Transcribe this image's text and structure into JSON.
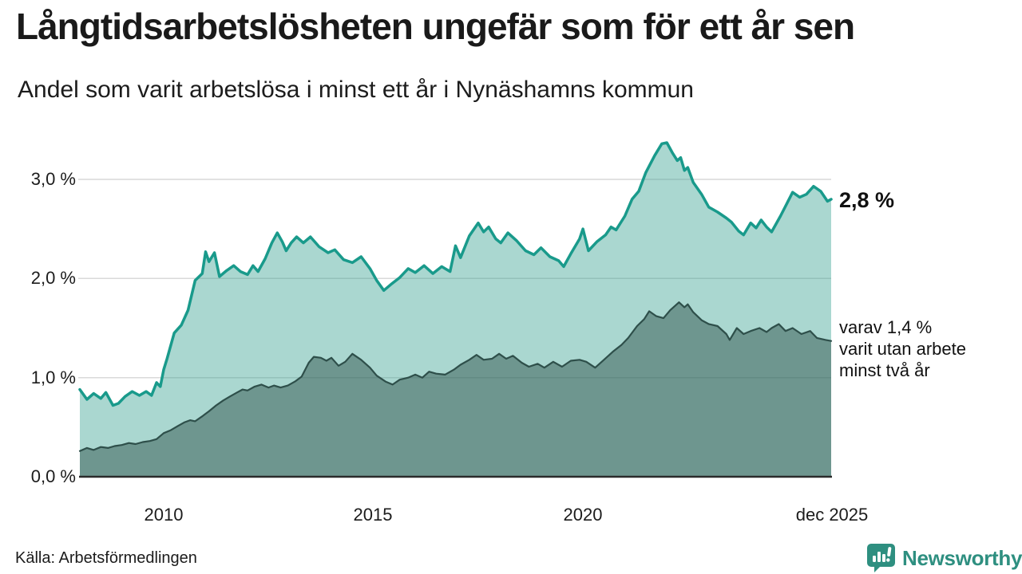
{
  "annotations": {
    "total_label": "2,8 %",
    "subset_lines": [
      "varav 1,4 %",
      "varit utan arbete",
      "minst två år"
    ]
  },
  "source_label": "Källa: Arbetsförmedlingen",
  "logo_text": "Newsworthy",
  "colors": {
    "accent_line": "#199a8b",
    "accent_fill": "rgba(53,160,142,0.42)",
    "dark_line": "#2e4f4a",
    "dark_fill": "rgba(46,79,74,0.48)",
    "gridline": "#d9d9d9",
    "axis_line": "#2b2b2b",
    "logo_teal": "#2e8f80"
  },
  "chart_data": {
    "type": "area",
    "title": "Långtidsarbetslösheten ungefär som för ett år sen",
    "subtitle": "Andel som varit arbetslösa i minst ett år i Nynäshamns kommun",
    "legend": "none (direct labels at line ends)",
    "x_axis": {
      "range": [
        2008,
        2025.92
      ],
      "ticks": [
        {
          "value": 2010,
          "label": "2010"
        },
        {
          "value": 2015,
          "label": "2015"
        },
        {
          "value": 2020,
          "label": "2020"
        },
        {
          "value": 2025.92,
          "label": "dec 2025"
        }
      ]
    },
    "y_axis": {
      "range": [
        0,
        3.5
      ],
      "unit": "%",
      "grid": true,
      "ticks": [
        {
          "value": 0,
          "label": "0,0 %"
        },
        {
          "value": 1,
          "label": "1,0 %"
        },
        {
          "value": 2,
          "label": "2,0 %"
        },
        {
          "value": 3,
          "label": "3,0 %"
        }
      ]
    },
    "series": [
      {
        "name": "Andel arbetslösa minst ett år",
        "end_value": 2.8,
        "end_label": "2,8 %",
        "color": "#199a8b",
        "fill": "rgba(53,160,142,0.42)",
        "points": [
          [
            2008.0,
            0.88
          ],
          [
            2008.17,
            0.78
          ],
          [
            2008.33,
            0.84
          ],
          [
            2008.5,
            0.79
          ],
          [
            2008.62,
            0.85
          ],
          [
            2008.79,
            0.72
          ],
          [
            2008.92,
            0.74
          ],
          [
            2009.08,
            0.81
          ],
          [
            2009.25,
            0.86
          ],
          [
            2009.42,
            0.82
          ],
          [
            2009.58,
            0.86
          ],
          [
            2009.71,
            0.82
          ],
          [
            2009.83,
            0.95
          ],
          [
            2009.92,
            0.91
          ],
          [
            2010.0,
            1.08
          ],
          [
            2010.08,
            1.19
          ],
          [
            2010.25,
            1.45
          ],
          [
            2010.42,
            1.53
          ],
          [
            2010.58,
            1.68
          ],
          [
            2010.75,
            1.98
          ],
          [
            2010.92,
            2.05
          ],
          [
            2011.0,
            2.27
          ],
          [
            2011.08,
            2.17
          ],
          [
            2011.21,
            2.26
          ],
          [
            2011.33,
            2.02
          ],
          [
            2011.5,
            2.08
          ],
          [
            2011.67,
            2.13
          ],
          [
            2011.83,
            2.07
          ],
          [
            2012.0,
            2.04
          ],
          [
            2012.13,
            2.13
          ],
          [
            2012.25,
            2.07
          ],
          [
            2012.42,
            2.2
          ],
          [
            2012.58,
            2.36
          ],
          [
            2012.71,
            2.46
          ],
          [
            2012.83,
            2.37
          ],
          [
            2012.92,
            2.28
          ],
          [
            2013.04,
            2.36
          ],
          [
            2013.17,
            2.42
          ],
          [
            2013.33,
            2.36
          ],
          [
            2013.5,
            2.42
          ],
          [
            2013.71,
            2.32
          ],
          [
            2013.92,
            2.26
          ],
          [
            2014.08,
            2.29
          ],
          [
            2014.29,
            2.19
          ],
          [
            2014.5,
            2.16
          ],
          [
            2014.71,
            2.22
          ],
          [
            2014.92,
            2.1
          ],
          [
            2015.08,
            1.98
          ],
          [
            2015.25,
            1.88
          ],
          [
            2015.42,
            1.94
          ],
          [
            2015.63,
            2.01
          ],
          [
            2015.83,
            2.1
          ],
          [
            2016.0,
            2.06
          ],
          [
            2016.21,
            2.13
          ],
          [
            2016.42,
            2.05
          ],
          [
            2016.63,
            2.12
          ],
          [
            2016.83,
            2.07
          ],
          [
            2016.96,
            2.33
          ],
          [
            2017.08,
            2.21
          ],
          [
            2017.29,
            2.43
          ],
          [
            2017.5,
            2.56
          ],
          [
            2017.63,
            2.47
          ],
          [
            2017.75,
            2.52
          ],
          [
            2017.92,
            2.4
          ],
          [
            2018.04,
            2.36
          ],
          [
            2018.21,
            2.46
          ],
          [
            2018.42,
            2.38
          ],
          [
            2018.63,
            2.28
          ],
          [
            2018.83,
            2.24
          ],
          [
            2019.0,
            2.31
          ],
          [
            2019.21,
            2.22
          ],
          [
            2019.42,
            2.18
          ],
          [
            2019.54,
            2.12
          ],
          [
            2019.71,
            2.25
          ],
          [
            2019.92,
            2.4
          ],
          [
            2020.0,
            2.5
          ],
          [
            2020.13,
            2.28
          ],
          [
            2020.33,
            2.37
          ],
          [
            2020.54,
            2.44
          ],
          [
            2020.67,
            2.52
          ],
          [
            2020.79,
            2.49
          ],
          [
            2021.0,
            2.63
          ],
          [
            2021.17,
            2.8
          ],
          [
            2021.33,
            2.88
          ],
          [
            2021.5,
            3.07
          ],
          [
            2021.71,
            3.24
          ],
          [
            2021.88,
            3.36
          ],
          [
            2022.0,
            3.37
          ],
          [
            2022.13,
            3.27
          ],
          [
            2022.25,
            3.19
          ],
          [
            2022.33,
            3.22
          ],
          [
            2022.42,
            3.09
          ],
          [
            2022.5,
            3.12
          ],
          [
            2022.63,
            2.97
          ],
          [
            2022.83,
            2.85
          ],
          [
            2023.0,
            2.72
          ],
          [
            2023.21,
            2.67
          ],
          [
            2023.42,
            2.61
          ],
          [
            2023.54,
            2.57
          ],
          [
            2023.71,
            2.48
          ],
          [
            2023.83,
            2.44
          ],
          [
            2024.0,
            2.56
          ],
          [
            2024.13,
            2.51
          ],
          [
            2024.25,
            2.59
          ],
          [
            2024.38,
            2.52
          ],
          [
            2024.5,
            2.47
          ],
          [
            2024.71,
            2.63
          ],
          [
            2024.88,
            2.77
          ],
          [
            2025.0,
            2.87
          ],
          [
            2025.17,
            2.82
          ],
          [
            2025.33,
            2.85
          ],
          [
            2025.5,
            2.93
          ],
          [
            2025.67,
            2.88
          ],
          [
            2025.83,
            2.78
          ],
          [
            2025.92,
            2.8
          ]
        ]
      },
      {
        "name": "Andel arbetslösa minst två år",
        "end_value": 1.4,
        "end_label": "varav 1,4 % varit utan arbete minst två år",
        "color": "#2e4f4a",
        "fill": "rgba(46,79,74,0.48)",
        "points": [
          [
            2008.0,
            0.26
          ],
          [
            2008.17,
            0.29
          ],
          [
            2008.33,
            0.27
          ],
          [
            2008.5,
            0.3
          ],
          [
            2008.67,
            0.29
          ],
          [
            2008.83,
            0.31
          ],
          [
            2009.0,
            0.32
          ],
          [
            2009.17,
            0.34
          ],
          [
            2009.33,
            0.33
          ],
          [
            2009.5,
            0.35
          ],
          [
            2009.67,
            0.36
          ],
          [
            2009.83,
            0.38
          ],
          [
            2010.0,
            0.44
          ],
          [
            2010.17,
            0.47
          ],
          [
            2010.33,
            0.51
          ],
          [
            2010.5,
            0.55
          ],
          [
            2010.63,
            0.57
          ],
          [
            2010.75,
            0.56
          ],
          [
            2010.92,
            0.61
          ],
          [
            2011.08,
            0.66
          ],
          [
            2011.25,
            0.72
          ],
          [
            2011.42,
            0.77
          ],
          [
            2011.58,
            0.81
          ],
          [
            2011.75,
            0.85
          ],
          [
            2011.88,
            0.88
          ],
          [
            2012.0,
            0.87
          ],
          [
            2012.17,
            0.91
          ],
          [
            2012.33,
            0.93
          ],
          [
            2012.5,
            0.9
          ],
          [
            2012.63,
            0.92
          ],
          [
            2012.79,
            0.9
          ],
          [
            2012.96,
            0.92
          ],
          [
            2013.13,
            0.96
          ],
          [
            2013.29,
            1.01
          ],
          [
            2013.46,
            1.15
          ],
          [
            2013.58,
            1.21
          ],
          [
            2013.75,
            1.2
          ],
          [
            2013.88,
            1.17
          ],
          [
            2014.0,
            1.2
          ],
          [
            2014.17,
            1.12
          ],
          [
            2014.33,
            1.16
          ],
          [
            2014.5,
            1.24
          ],
          [
            2014.71,
            1.18
          ],
          [
            2014.92,
            1.1
          ],
          [
            2015.08,
            1.02
          ],
          [
            2015.29,
            0.96
          ],
          [
            2015.46,
            0.93
          ],
          [
            2015.63,
            0.98
          ],
          [
            2015.83,
            1.0
          ],
          [
            2016.0,
            1.03
          ],
          [
            2016.17,
            1.0
          ],
          [
            2016.33,
            1.06
          ],
          [
            2016.5,
            1.04
          ],
          [
            2016.71,
            1.03
          ],
          [
            2016.92,
            1.08
          ],
          [
            2017.08,
            1.13
          ],
          [
            2017.29,
            1.18
          ],
          [
            2017.46,
            1.23
          ],
          [
            2017.63,
            1.18
          ],
          [
            2017.83,
            1.19
          ],
          [
            2018.0,
            1.24
          ],
          [
            2018.17,
            1.19
          ],
          [
            2018.33,
            1.22
          ],
          [
            2018.54,
            1.15
          ],
          [
            2018.71,
            1.11
          ],
          [
            2018.92,
            1.14
          ],
          [
            2019.08,
            1.1
          ],
          [
            2019.29,
            1.16
          ],
          [
            2019.5,
            1.11
          ],
          [
            2019.71,
            1.17
          ],
          [
            2019.92,
            1.18
          ],
          [
            2020.08,
            1.16
          ],
          [
            2020.29,
            1.1
          ],
          [
            2020.5,
            1.18
          ],
          [
            2020.71,
            1.26
          ],
          [
            2020.92,
            1.33
          ],
          [
            2021.08,
            1.4
          ],
          [
            2021.29,
            1.52
          ],
          [
            2021.46,
            1.59
          ],
          [
            2021.58,
            1.67
          ],
          [
            2021.75,
            1.62
          ],
          [
            2021.92,
            1.6
          ],
          [
            2022.08,
            1.68
          ],
          [
            2022.29,
            1.76
          ],
          [
            2022.42,
            1.71
          ],
          [
            2022.5,
            1.74
          ],
          [
            2022.63,
            1.66
          ],
          [
            2022.83,
            1.58
          ],
          [
            2023.0,
            1.54
          ],
          [
            2023.21,
            1.52
          ],
          [
            2023.42,
            1.44
          ],
          [
            2023.5,
            1.38
          ],
          [
            2023.67,
            1.5
          ],
          [
            2023.83,
            1.44
          ],
          [
            2024.0,
            1.47
          ],
          [
            2024.21,
            1.5
          ],
          [
            2024.38,
            1.46
          ],
          [
            2024.5,
            1.5
          ],
          [
            2024.67,
            1.54
          ],
          [
            2024.83,
            1.47
          ],
          [
            2025.0,
            1.5
          ],
          [
            2025.21,
            1.44
          ],
          [
            2025.42,
            1.47
          ],
          [
            2025.58,
            1.4
          ],
          [
            2025.79,
            1.38
          ],
          [
            2025.92,
            1.37
          ]
        ]
      }
    ]
  }
}
